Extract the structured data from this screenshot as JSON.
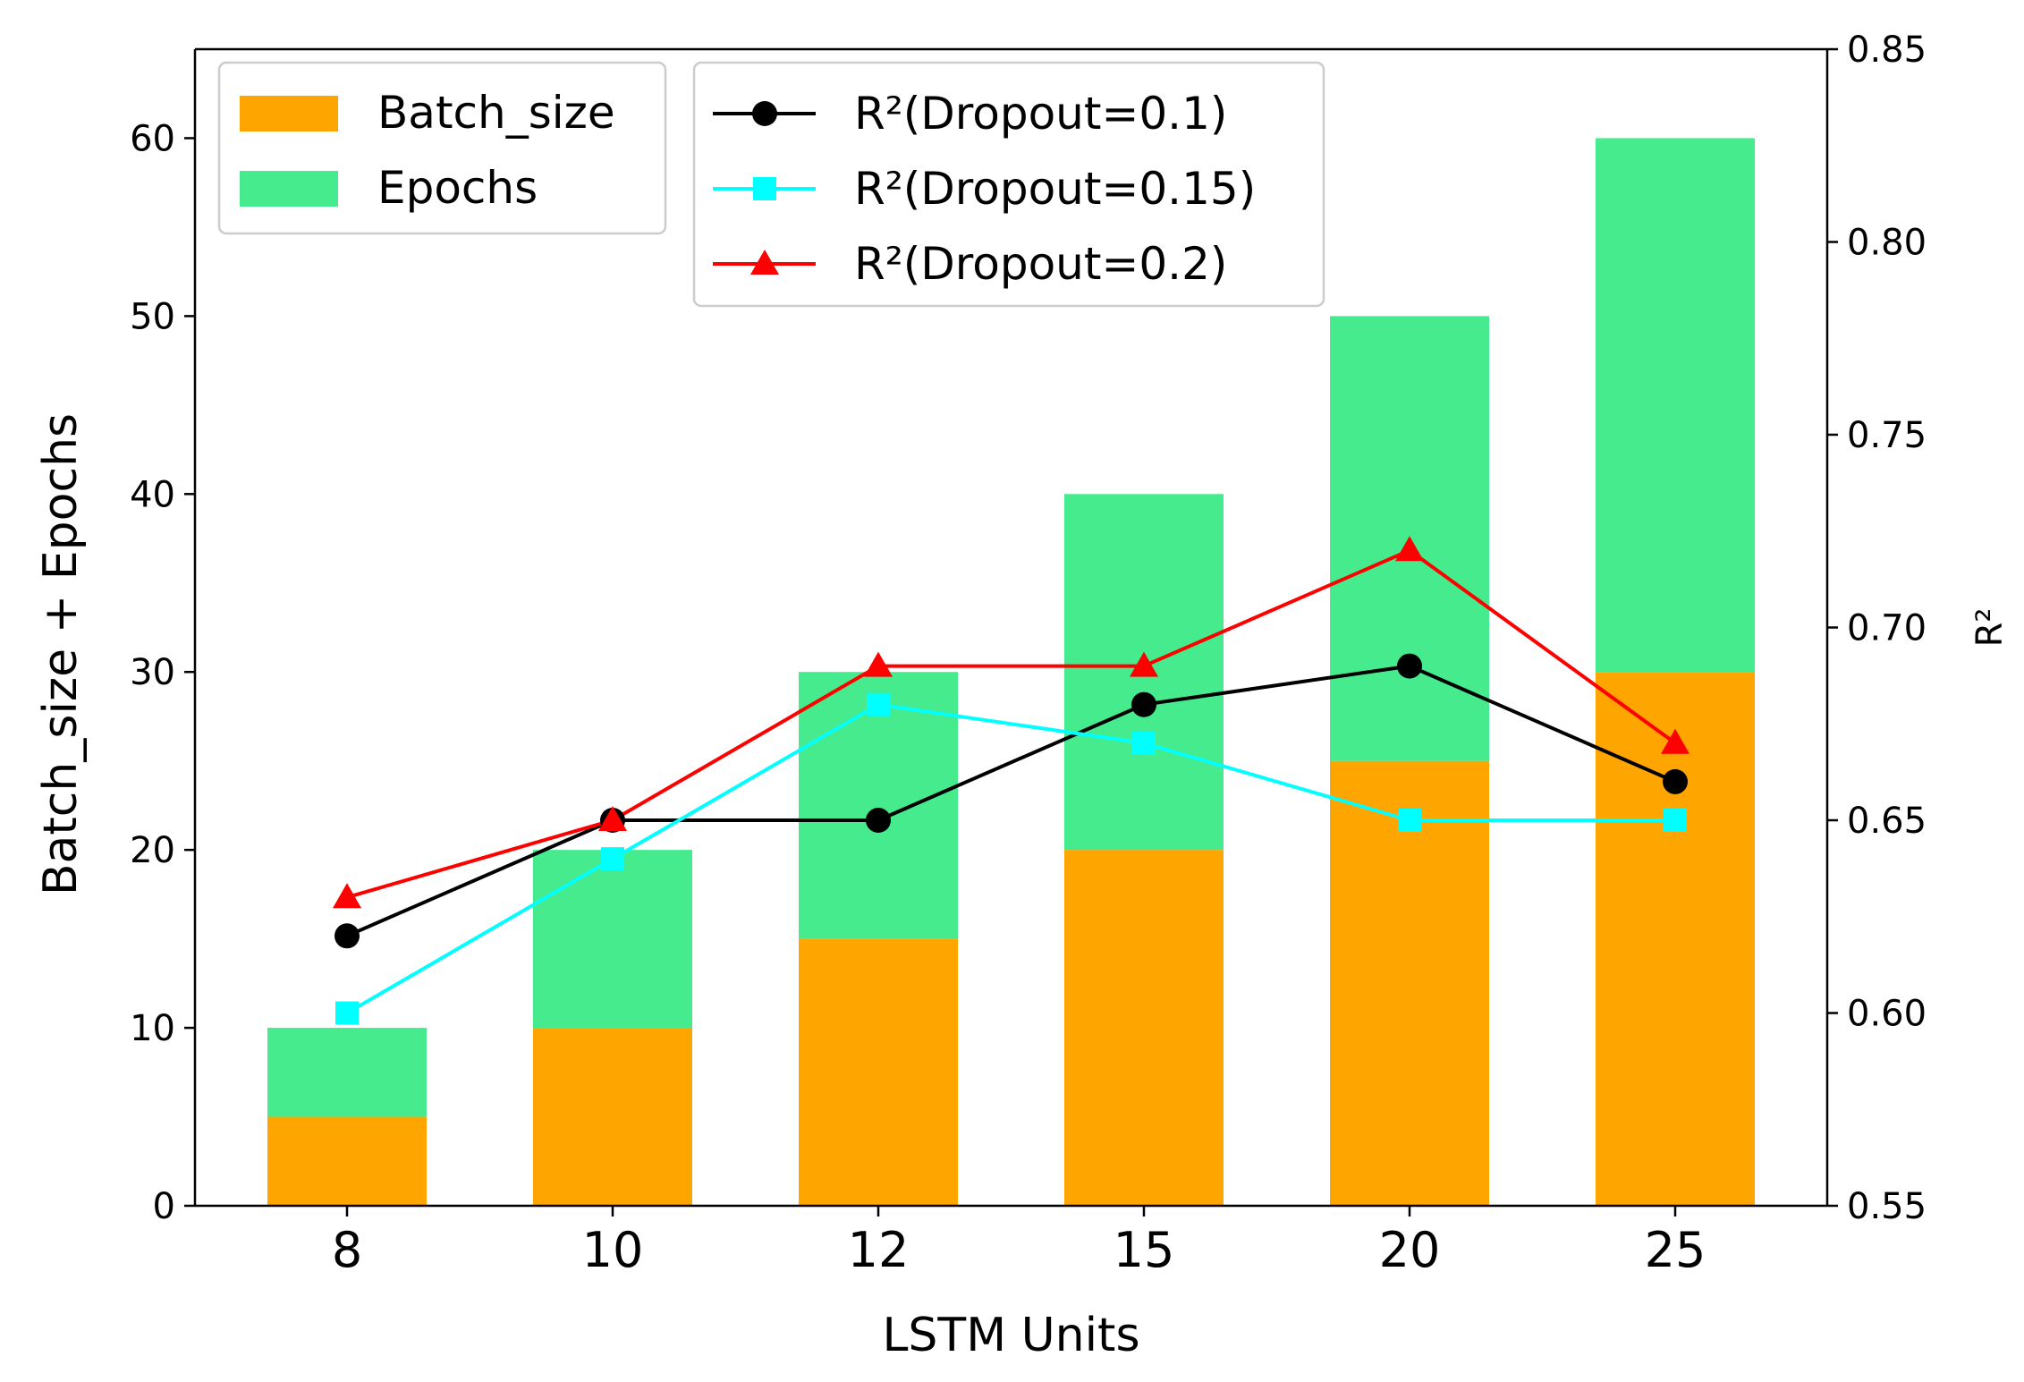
{
  "chart_data": {
    "type": "bar",
    "stacked": true,
    "categories": [
      "8",
      "10",
      "12",
      "15",
      "20",
      "25"
    ],
    "bar_series": [
      {
        "name": "Batch_size",
        "color": "#FFA500",
        "values": [
          5,
          10,
          15,
          20,
          25,
          30
        ]
      },
      {
        "name": "Epochs",
        "color": "#45EB8C",
        "values": [
          5,
          10,
          15,
          20,
          25,
          30
        ]
      }
    ],
    "line_series": [
      {
        "name": "R²(Dropout=0.1)",
        "color": "#000000",
        "marker": "circle",
        "values": [
          0.62,
          0.65,
          0.65,
          0.68,
          0.69,
          0.66
        ]
      },
      {
        "name": "R²(Dropout=0.15)",
        "color": "#00FFFF",
        "marker": "square",
        "values": [
          0.6,
          0.64,
          0.68,
          0.67,
          0.65,
          0.65
        ]
      },
      {
        "name": "R²(Dropout=0.2)",
        "color": "#FF0000",
        "marker": "triangle",
        "values": [
          0.63,
          0.65,
          0.69,
          0.69,
          0.72,
          0.67
        ]
      }
    ],
    "xlabel": "LSTM Units",
    "ylabel": "Batch_size + Epochs",
    "y2label": "R²",
    "ylim": [
      0,
      65
    ],
    "y2lim": [
      0.55,
      0.85
    ],
    "yticks": [
      0,
      10,
      20,
      30,
      40,
      50,
      60
    ],
    "y2ticks": [
      "0.55",
      "0.60",
      "0.65",
      "0.70",
      "0.75",
      "0.80",
      "0.85"
    ],
    "grid": false,
    "bar_legend_position": "top-left",
    "line_legend_position": "top-center"
  }
}
